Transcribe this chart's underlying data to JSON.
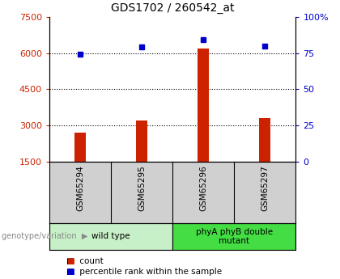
{
  "title": "GDS1702 / 260542_at",
  "samples": [
    "GSM65294",
    "GSM65295",
    "GSM65296",
    "GSM65297"
  ],
  "counts": [
    2700,
    3200,
    6200,
    3300
  ],
  "percentiles": [
    74,
    79,
    84,
    80
  ],
  "ylim_left": [
    1500,
    7500
  ],
  "yticks_left": [
    1500,
    3000,
    4500,
    6000,
    7500
  ],
  "ylim_right": [
    0,
    100
  ],
  "yticks_right": [
    0,
    25,
    50,
    75,
    100
  ],
  "groups": [
    {
      "label": "wild type",
      "samples": [
        0,
        1
      ],
      "color": "#c8f0c8"
    },
    {
      "label": "phyA phyB double\nmutant",
      "samples": [
        2,
        3
      ],
      "color": "#44dd44"
    }
  ],
  "bar_color": "#cc2200",
  "dot_color": "#0000cc",
  "axis_left_color": "#cc2200",
  "axis_right_color": "#0000cc",
  "sample_bg_color": "#d0d0d0",
  "legend_count_color": "#cc2200",
  "legend_pct_color": "#0000cc",
  "bar_width": 0.18,
  "dot_size": 5,
  "grid_yticks": [
    3000,
    4500,
    6000
  ]
}
